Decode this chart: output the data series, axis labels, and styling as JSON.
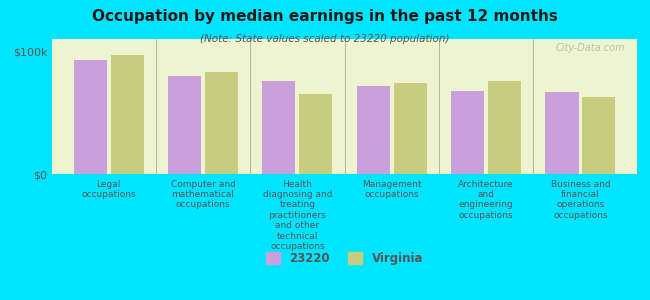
{
  "title": "Occupation by median earnings in the past 12 months",
  "subtitle": "(Note: State values scaled to 23220 population)",
  "categories": [
    "Legal\noccupations",
    "Computer and\nmathematical\noccupations",
    "Health\ndiagnosing and\ntreating\npractitioners\nand other\ntechnical\noccupations",
    "Management\noccupations",
    "Architecture\nand\nengineering\noccupations",
    "Business and\nfinancial\noperations\noccupations"
  ],
  "values_23220": [
    93000,
    80000,
    76000,
    72000,
    68000,
    67000
  ],
  "values_virginia": [
    97000,
    83000,
    65000,
    74000,
    76000,
    63000
  ],
  "color_23220": "#c9a0dc",
  "color_virginia": "#c8cc7e",
  "background_color": "#00e5ff",
  "plot_bg_color": "#eef3d0",
  "ylabel_0": "$0",
  "ylabel_100k": "$100k",
  "ylim": [
    0,
    110000
  ],
  "yticks": [
    0,
    100000
  ],
  "ytick_labels": [
    "$0",
    "$100k"
  ],
  "legend_23220": "23220",
  "legend_virginia": "Virginia",
  "watermark": "City-Data.com"
}
